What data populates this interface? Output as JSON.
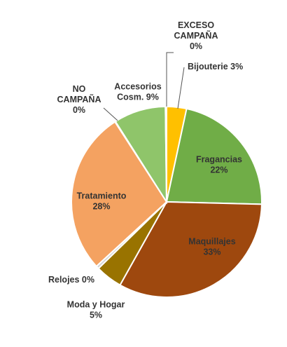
{
  "chart_data": {
    "type": "pie",
    "title": "",
    "categories": [
      "Bijouterie",
      "Fragancias",
      "Maquillajes",
      "Moda y Hogar",
      "Relojes",
      "Tratamiento",
      "NO CAMPAÑA",
      "Accesorios Cosm.",
      "EXCESO CAMPAÑA"
    ],
    "values": [
      3.4,
      22.2,
      33.0,
      4.6,
      0.5,
      27.9,
      0.1,
      8.9,
      0.2
    ],
    "colors": [
      "#FFC000",
      "#70AD47",
      "#9E480E",
      "#997300",
      "#D4D4D4",
      "#F4A261",
      "#BFBFBF",
      "#8FC56A",
      "#A5A5A5"
    ],
    "labels": [
      [
        "Bijouterie 3%"
      ],
      [
        "Fragancias",
        "22%"
      ],
      [
        "Maquillajes",
        "33%"
      ],
      [
        "Moda y Hogar",
        "5%"
      ],
      [
        "Relojes 0%"
      ],
      [
        "Tratamiento",
        "28%"
      ],
      [
        "NO",
        "CAMPAÑA",
        "0%"
      ],
      [
        "Accesorios",
        "Cosm. 9%"
      ],
      [
        "EXCESO",
        "CAMPAÑA",
        "0%"
      ]
    ],
    "legend": "none",
    "start_angle_deg": 0,
    "direction": "clockwise"
  }
}
